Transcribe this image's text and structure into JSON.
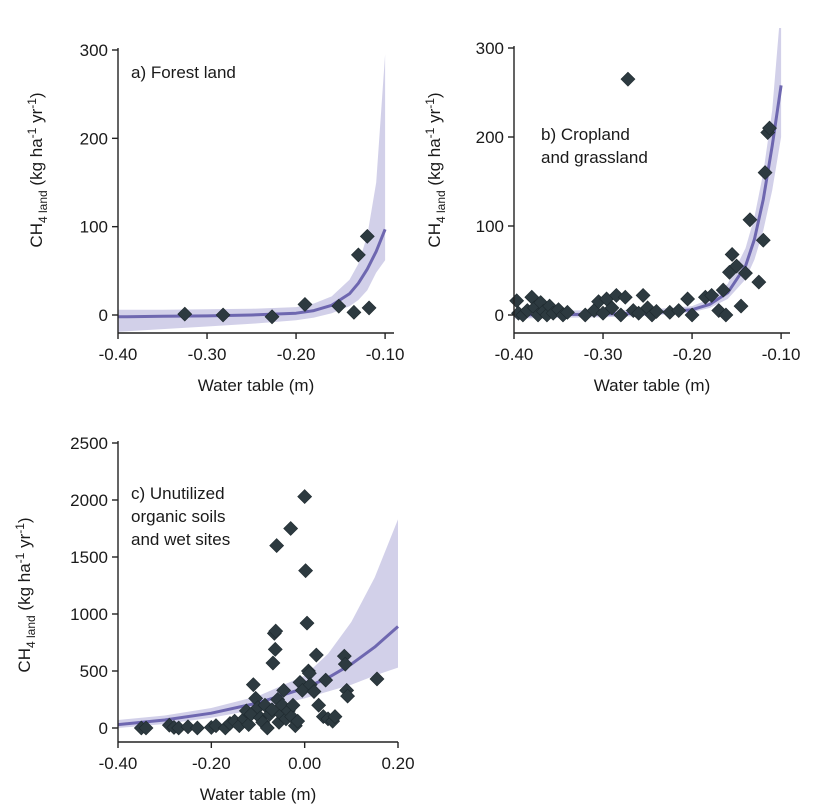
{
  "chart_data": [
    {
      "id": "a",
      "type": "scatter",
      "label_lines": [
        "a) Forest land"
      ],
      "xlabel": "Water table (m)",
      "ylabel": {
        "main": "CH",
        "sub1": "4 land",
        "rest": " (kg ha",
        "sup1": "-1",
        "mid": " yr",
        "sup2": "-1",
        "end": ")"
      },
      "xlim": [
        -0.4,
        -0.09
      ],
      "ylim": [
        -20,
        300
      ],
      "xticks": [
        -0.4,
        -0.3,
        -0.2,
        -0.1
      ],
      "xtick_labels": [
        "-0.40",
        "-0.30",
        "-0.20",
        "-0.10"
      ],
      "yticks": [
        0,
        100,
        200,
        300
      ],
      "ytick_labels": [
        "0",
        "100",
        "200",
        "300"
      ],
      "points": [
        {
          "x": -0.325,
          "y": 1
        },
        {
          "x": -0.282,
          "y": 0
        },
        {
          "x": -0.227,
          "y": -2
        },
        {
          "x": -0.19,
          "y": 12
        },
        {
          "x": -0.152,
          "y": 10
        },
        {
          "x": -0.135,
          "y": 3
        },
        {
          "x": -0.13,
          "y": 68
        },
        {
          "x": -0.12,
          "y": 89
        },
        {
          "x": -0.118,
          "y": 8
        }
      ],
      "fit": {
        "x": [
          -0.4,
          -0.35,
          -0.3,
          -0.25,
          -0.2,
          -0.18,
          -0.16,
          -0.14,
          -0.13,
          -0.12,
          -0.11,
          -0.1
        ],
        "y": [
          -2,
          -1.5,
          -1,
          0,
          2,
          5,
          11,
          24,
          36,
          52,
          72,
          97
        ]
      },
      "band": {
        "x": [
          -0.4,
          -0.35,
          -0.3,
          -0.25,
          -0.2,
          -0.18,
          -0.16,
          -0.14,
          -0.13,
          -0.12,
          -0.11,
          -0.1
        ],
        "upper": [
          6,
          6,
          6.5,
          7,
          9,
          13,
          21,
          40,
          58,
          90,
          150,
          295
        ],
        "lower": [
          -19,
          -16,
          -13,
          -10,
          -6,
          -3,
          2,
          10,
          17,
          28,
          48,
          62
        ]
      }
    },
    {
      "id": "b",
      "type": "scatter",
      "label_lines": [
        "b) Cropland",
        "and grassland"
      ],
      "xlabel": "Water table (m)",
      "ylabel": {
        "main": "CH",
        "sub1": "4 land",
        "rest": " (kg ha",
        "sup1": "-1",
        "mid": " yr",
        "sup2": "-1",
        "end": ")"
      },
      "xlim": [
        -0.4,
        -0.09
      ],
      "ylim": [
        -20,
        300
      ],
      "xticks": [
        -0.4,
        -0.3,
        -0.2,
        -0.1
      ],
      "xtick_labels": [
        "-0.40",
        "-0.30",
        "-0.20",
        "-0.10"
      ],
      "yticks": [
        0,
        100,
        200,
        300
      ],
      "ytick_labels": [
        "0",
        "100",
        "200",
        "300"
      ],
      "points": [
        {
          "x": -0.397,
          "y": 16
        },
        {
          "x": -0.395,
          "y": 2
        },
        {
          "x": -0.39,
          "y": 0
        },
        {
          "x": -0.385,
          "y": 5
        },
        {
          "x": -0.38,
          "y": 20
        },
        {
          "x": -0.377,
          "y": 8
        },
        {
          "x": -0.373,
          "y": 0
        },
        {
          "x": -0.37,
          "y": 14
        },
        {
          "x": -0.367,
          "y": 4
        },
        {
          "x": -0.363,
          "y": 0
        },
        {
          "x": -0.36,
          "y": 10
        },
        {
          "x": -0.356,
          "y": 2
        },
        {
          "x": -0.35,
          "y": 6
        },
        {
          "x": -0.345,
          "y": 0
        },
        {
          "x": -0.34,
          "y": 3
        },
        {
          "x": -0.32,
          "y": 0
        },
        {
          "x": -0.31,
          "y": 5
        },
        {
          "x": -0.305,
          "y": 15
        },
        {
          "x": -0.3,
          "y": 2
        },
        {
          "x": -0.296,
          "y": 18
        },
        {
          "x": -0.29,
          "y": 8
        },
        {
          "x": -0.285,
          "y": 22
        },
        {
          "x": -0.28,
          "y": 0
        },
        {
          "x": -0.275,
          "y": 20
        },
        {
          "x": -0.272,
          "y": 265
        },
        {
          "x": -0.266,
          "y": 5
        },
        {
          "x": -0.26,
          "y": 2
        },
        {
          "x": -0.255,
          "y": 22
        },
        {
          "x": -0.25,
          "y": 8
        },
        {
          "x": -0.245,
          "y": 0
        },
        {
          "x": -0.24,
          "y": 4
        },
        {
          "x": -0.225,
          "y": 3
        },
        {
          "x": -0.215,
          "y": 5
        },
        {
          "x": -0.205,
          "y": 18
        },
        {
          "x": -0.2,
          "y": 0
        },
        {
          "x": -0.185,
          "y": 20
        },
        {
          "x": -0.178,
          "y": 22
        },
        {
          "x": -0.17,
          "y": 5
        },
        {
          "x": -0.165,
          "y": 28
        },
        {
          "x": -0.162,
          "y": 0
        },
        {
          "x": -0.158,
          "y": 48
        },
        {
          "x": -0.155,
          "y": 68
        },
        {
          "x": -0.15,
          "y": 55
        },
        {
          "x": -0.145,
          "y": 10
        },
        {
          "x": -0.14,
          "y": 47
        },
        {
          "x": -0.135,
          "y": 107
        },
        {
          "x": -0.125,
          "y": 37
        },
        {
          "x": -0.12,
          "y": 84
        },
        {
          "x": -0.118,
          "y": 160
        },
        {
          "x": -0.115,
          "y": 205
        },
        {
          "x": -0.113,
          "y": 210
        }
      ],
      "fit": {
        "x": [
          -0.4,
          -0.35,
          -0.3,
          -0.25,
          -0.2,
          -0.18,
          -0.16,
          -0.14,
          -0.13,
          -0.12,
          -0.11,
          -0.1
        ],
        "y": [
          0,
          0.5,
          1,
          2,
          6,
          12,
          25,
          55,
          85,
          130,
          190,
          258
        ]
      },
      "band": {
        "x": [
          -0.4,
          -0.35,
          -0.3,
          -0.25,
          -0.2,
          -0.18,
          -0.16,
          -0.14,
          -0.13,
          -0.12,
          -0.11,
          -0.1
        ],
        "upper": [
          5,
          5,
          5.5,
          6,
          10,
          18,
          35,
          75,
          110,
          160,
          230,
          350
        ],
        "lower": [
          -4,
          -3,
          -2.5,
          -1,
          3,
          8,
          18,
          40,
          62,
          95,
          140,
          200
        ]
      }
    },
    {
      "id": "c",
      "type": "scatter",
      "label_lines": [
        "c) Unutilized",
        "organic soils",
        "and wet sites"
      ],
      "xlabel": "Water table (m)",
      "ylabel": {
        "main": "CH",
        "sub1": "4 land",
        "rest": " (kg ha",
        "sup1": "-1",
        "mid": " yr",
        "sup2": "-1",
        "end": ")"
      },
      "xlim": [
        -0.4,
        0.2
      ],
      "ylim": [
        -100,
        2500
      ],
      "xticks": [
        -0.4,
        -0.2,
        0.0,
        0.2
      ],
      "xtick_labels": [
        "-0.40",
        "-0.20",
        "0.00",
        "0.20"
      ],
      "yticks": [
        0,
        500,
        1000,
        1500,
        2000,
        2500
      ],
      "ytick_labels": [
        "0",
        "500",
        "1000",
        "1500",
        "2000",
        "2500"
      ],
      "points": [
        {
          "x": -0.35,
          "y": 0
        },
        {
          "x": -0.34,
          "y": 0
        },
        {
          "x": -0.29,
          "y": 25
        },
        {
          "x": -0.28,
          "y": 5
        },
        {
          "x": -0.27,
          "y": 0
        },
        {
          "x": -0.25,
          "y": 10
        },
        {
          "x": -0.23,
          "y": 0
        },
        {
          "x": -0.2,
          "y": 5
        },
        {
          "x": -0.19,
          "y": 20
        },
        {
          "x": -0.17,
          "y": 0
        },
        {
          "x": -0.16,
          "y": 40
        },
        {
          "x": -0.15,
          "y": 60
        },
        {
          "x": -0.14,
          "y": 20
        },
        {
          "x": -0.13,
          "y": 80
        },
        {
          "x": -0.125,
          "y": 150
        },
        {
          "x": -0.12,
          "y": 30
        },
        {
          "x": -0.115,
          "y": 120
        },
        {
          "x": -0.11,
          "y": 380
        },
        {
          "x": -0.105,
          "y": 260
        },
        {
          "x": -0.1,
          "y": 180
        },
        {
          "x": -0.095,
          "y": 90
        },
        {
          "x": -0.09,
          "y": 50
        },
        {
          "x": -0.085,
          "y": 200
        },
        {
          "x": -0.08,
          "y": 0
        },
        {
          "x": -0.075,
          "y": 120
        },
        {
          "x": -0.07,
          "y": 160
        },
        {
          "x": -0.068,
          "y": 570
        },
        {
          "x": -0.065,
          "y": 830
        },
        {
          "x": -0.063,
          "y": 690
        },
        {
          "x": -0.062,
          "y": 850
        },
        {
          "x": -0.06,
          "y": 1600
        },
        {
          "x": -0.058,
          "y": 250
        },
        {
          "x": -0.055,
          "y": 50
        },
        {
          "x": -0.05,
          "y": 120
        },
        {
          "x": -0.048,
          "y": 200
        },
        {
          "x": -0.045,
          "y": 330
        },
        {
          "x": -0.04,
          "y": 80
        },
        {
          "x": -0.035,
          "y": 150
        },
        {
          "x": -0.03,
          "y": 1750
        },
        {
          "x": -0.028,
          "y": 100
        },
        {
          "x": -0.025,
          "y": 200
        },
        {
          "x": -0.02,
          "y": 20
        },
        {
          "x": -0.015,
          "y": 60
        },
        {
          "x": -0.01,
          "y": 400
        },
        {
          "x": -0.005,
          "y": 330
        },
        {
          "x": 0.0,
          "y": 2030
        },
        {
          "x": 0.002,
          "y": 1380
        },
        {
          "x": 0.005,
          "y": 920
        },
        {
          "x": 0.008,
          "y": 500
        },
        {
          "x": 0.01,
          "y": 480
        },
        {
          "x": 0.012,
          "y": 380
        },
        {
          "x": 0.02,
          "y": 320
        },
        {
          "x": 0.025,
          "y": 640
        },
        {
          "x": 0.03,
          "y": 200
        },
        {
          "x": 0.04,
          "y": 100
        },
        {
          "x": 0.045,
          "y": 420
        },
        {
          "x": 0.05,
          "y": 80
        },
        {
          "x": 0.06,
          "y": 60
        },
        {
          "x": 0.065,
          "y": 100
        },
        {
          "x": 0.085,
          "y": 630
        },
        {
          "x": 0.087,
          "y": 560
        },
        {
          "x": 0.09,
          "y": 330
        },
        {
          "x": 0.092,
          "y": 280
        },
        {
          "x": 0.155,
          "y": 430
        }
      ],
      "fit": {
        "x": [
          -0.4,
          -0.3,
          -0.2,
          -0.1,
          0.0,
          0.05,
          0.1,
          0.15,
          0.2
        ],
        "y": [
          30,
          70,
          130,
          220,
          350,
          440,
          560,
          710,
          890
        ]
      },
      "band": {
        "x": [
          -0.4,
          -0.3,
          -0.2,
          -0.1,
          0.0,
          0.05,
          0.1,
          0.15,
          0.2
        ],
        "upper": [
          70,
          110,
          175,
          280,
          460,
          650,
          930,
          1320,
          1830
        ],
        "lower": [
          0,
          35,
          90,
          165,
          260,
          320,
          380,
          460,
          530
        ]
      }
    }
  ]
}
